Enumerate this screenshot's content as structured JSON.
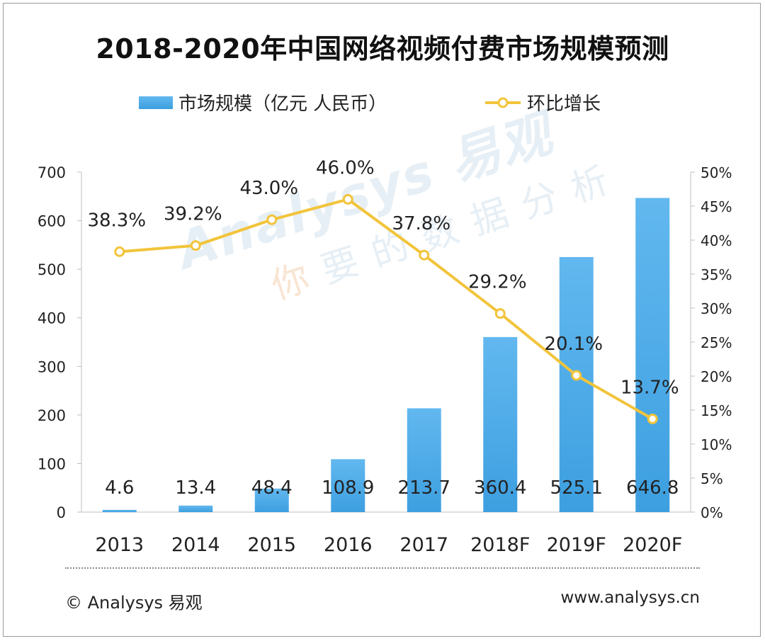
{
  "title": "2018-2020年中国网络视频付费市场规模预测",
  "colors": {
    "bar": "#3d9fe0",
    "bar_light": "#62b8ef",
    "line": "#f2c43b",
    "axis": "#bfbfbf",
    "text": "#222222"
  },
  "legend": {
    "bar_label": "市场规模（亿元 人民币）",
    "line_label": "环比增长"
  },
  "watermark": {
    "brand": "Analysys 易观",
    "slogan_first": "你",
    "slogan_rest": "要的数据分析"
  },
  "footer": {
    "left": "© Analysys 易观",
    "right": "www.analysys.cn"
  },
  "chart_data": {
    "type": "bar",
    "categories": [
      "2013",
      "2014",
      "2015",
      "2016",
      "2017",
      "2018F",
      "2019F",
      "2020F"
    ],
    "series": [
      {
        "name": "市场规模（亿元 人民币）",
        "type": "bar",
        "axis": "left",
        "values": [
          4.6,
          13.4,
          48.4,
          108.9,
          213.7,
          360.4,
          525.1,
          646.8
        ],
        "labels": [
          "4.6",
          "13.4",
          "48.4",
          "108.9",
          "213.7",
          "360.4",
          "525.1",
          "646.8"
        ]
      },
      {
        "name": "环比增长",
        "type": "line",
        "axis": "right",
        "values": [
          38.3,
          39.2,
          43.0,
          46.0,
          37.8,
          29.2,
          20.1,
          13.7
        ],
        "labels": [
          "38.3%",
          "39.2%",
          "43.0%",
          "46.0%",
          "37.8%",
          "29.2%",
          "20.1%",
          "13.7%"
        ]
      }
    ],
    "left_axis": {
      "ylim": [
        0,
        700
      ],
      "ticks": [
        "0",
        "100",
        "200",
        "300",
        "400",
        "500",
        "600",
        "700"
      ]
    },
    "right_axis": {
      "ylim": [
        0,
        50
      ],
      "ticks": [
        "0%",
        "5%",
        "10%",
        "15%",
        "20%",
        "25%",
        "30%",
        "35%",
        "40%",
        "45%",
        "50%"
      ]
    },
    "xlabel": "",
    "ylabel": "",
    "grid": false,
    "legend_position": "top-center"
  }
}
